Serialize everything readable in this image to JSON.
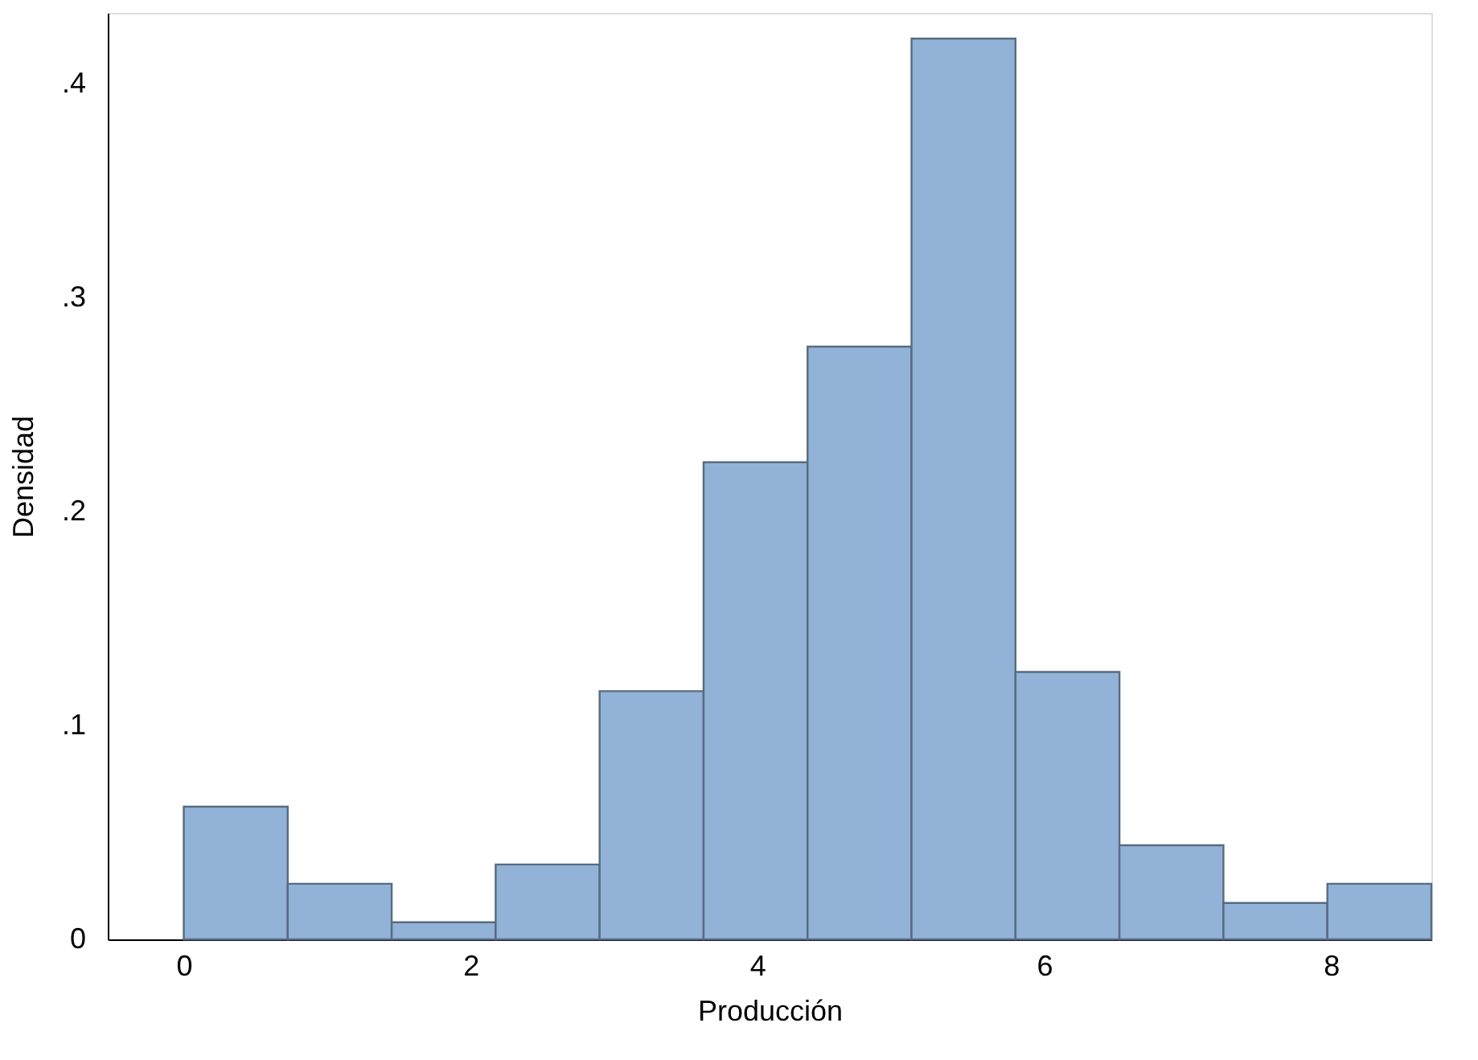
{
  "chart_data": {
    "type": "histogram",
    "xlabel": "Producción",
    "ylabel": "Densidad",
    "color": "#92b3d7",
    "bins": [
      0,
      0.725,
      1.45,
      2.175,
      2.9,
      3.625,
      4.35,
      5.075,
      5.8,
      6.525,
      7.25,
      7.975,
      8.7
    ],
    "values": [
      0.062,
      0.026,
      0.008,
      0.035,
      0.116,
      0.223,
      0.277,
      0.421,
      0.125,
      0.044,
      0.017,
      0.026
    ],
    "xlim": [
      -0.53,
      8.7
    ],
    "ylim": [
      0,
      0.433
    ],
    "xticks": [
      0,
      2,
      4,
      6,
      8
    ],
    "yticks": [
      0,
      {
        "value": 0.1,
        "label": ".1"
      },
      {
        "value": 0.2,
        "label": ".2"
      },
      {
        "value": 0.3,
        "label": ".3"
      },
      {
        "value": 0.4,
        "label": ".4"
      }
    ],
    "grid": false
  }
}
